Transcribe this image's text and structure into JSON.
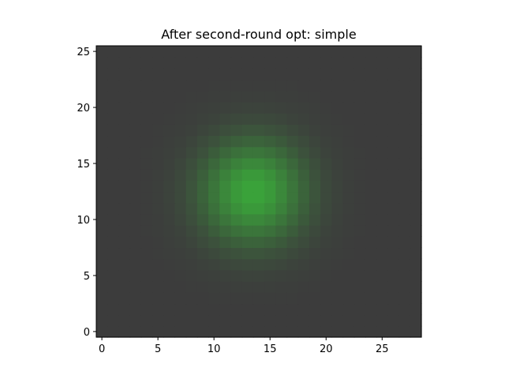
{
  "chart_data": {
    "type": "heatmap",
    "title": "After second-round opt: simple",
    "xlabel": "",
    "ylabel": "",
    "grid": {
      "cols": 29,
      "rows": 26
    },
    "xlim": [
      -0.5,
      28.5
    ],
    "ylim": [
      -0.5,
      25.5
    ],
    "xticks": [
      0,
      5,
      10,
      15,
      20,
      25
    ],
    "yticks": [
      0,
      5,
      10,
      15,
      20,
      25
    ],
    "origin": "lower",
    "peak": {
      "x": 13.5,
      "y": 12.5,
      "sigma": 3.2,
      "amplitude": 1.0
    },
    "colors": {
      "background": "#3c3c3c",
      "peak": "#3aa53a"
    }
  }
}
